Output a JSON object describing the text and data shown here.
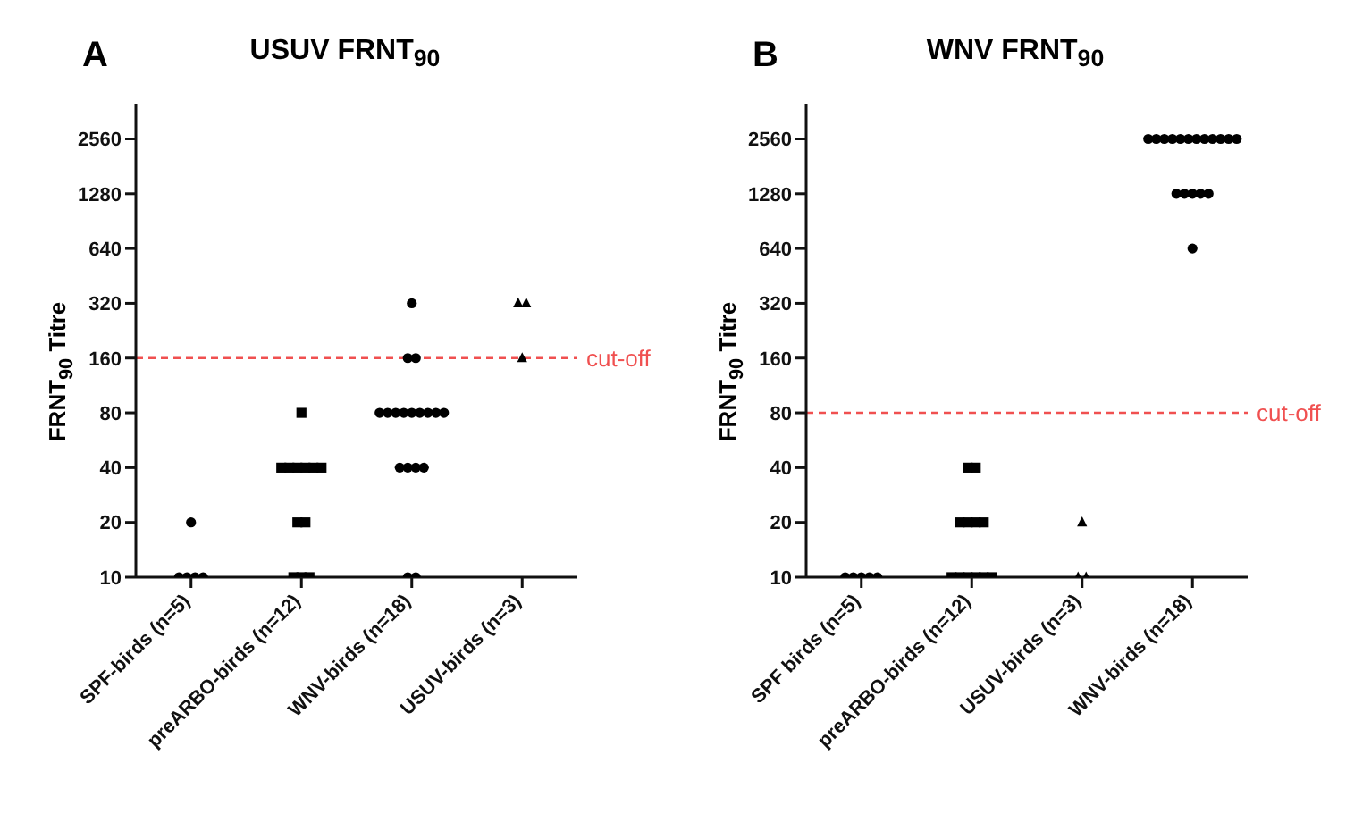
{
  "chart_data": [
    {
      "type": "scatter",
      "title": "USUV FRNT$_{90}$",
      "ylabel": "FRNT$_{90}$ Titre",
      "annotations": [
        "A"
      ],
      "categories": [
        "SPF-birds (n=5)",
        "preARBO-birds (n=12)",
        "WNV-birds (n=18)",
        "USUV-birds (n=3)"
      ],
      "log": "y",
      "ylim": [
        10,
        4000
      ],
      "yticks": [
        10,
        20,
        40,
        80,
        160,
        320,
        640,
        1280,
        2560
      ],
      "grid": false,
      "legend": false,
      "ref_lines": [
        {
          "axis": "y",
          "value": 160,
          "label": "cut-off",
          "color": "#f05050",
          "line_style": "dashed"
        }
      ],
      "series": [
        {
          "color": "#000000",
          "marker": "circle",
          "x": [
            "SPF-birds (n=5)",
            "SPF-birds (n=5)",
            "SPF-birds (n=5)",
            "SPF-birds (n=5)",
            "SPF-birds (n=5)"
          ],
          "values": [
            10,
            10,
            10,
            10,
            20
          ]
        },
        {
          "color": "#000000",
          "marker": "square",
          "x": [
            "preARBO-birds (n=12)",
            "preARBO-birds (n=12)",
            "preARBO-birds (n=12)",
            "preARBO-birds (n=12)",
            "preARBO-birds (n=12)",
            "preARBO-birds (n=12)",
            "preARBO-birds (n=12)",
            "preARBO-birds (n=12)",
            "preARBO-birds (n=12)",
            "preARBO-birds (n=12)",
            "preARBO-birds (n=12)",
            "preARBO-birds (n=12)"
          ],
          "values": [
            80,
            40,
            40,
            40,
            40,
            40,
            40,
            20,
            20,
            10,
            10,
            10
          ]
        },
        {
          "color": "#000000",
          "marker": "circle",
          "x": [
            "WNV-birds (n=18)",
            "WNV-birds (n=18)",
            "WNV-birds (n=18)",
            "WNV-birds (n=18)",
            "WNV-birds (n=18)",
            "WNV-birds (n=18)",
            "WNV-birds (n=18)",
            "WNV-birds (n=18)",
            "WNV-birds (n=18)",
            "WNV-birds (n=18)",
            "WNV-birds (n=18)",
            "WNV-birds (n=18)",
            "WNV-birds (n=18)",
            "WNV-birds (n=18)",
            "WNV-birds (n=18)",
            "WNV-birds (n=18)",
            "WNV-birds (n=18)",
            "WNV-birds (n=18)"
          ],
          "values": [
            320,
            160,
            160,
            80,
            80,
            80,
            80,
            80,
            80,
            80,
            80,
            80,
            40,
            40,
            40,
            40,
            10,
            10
          ]
        },
        {
          "color": "#000000",
          "marker": "triangle",
          "x": [
            "USUV-birds (n=3)",
            "USUV-birds (n=3)",
            "USUV-birds (n=3)"
          ],
          "values": [
            320,
            320,
            160
          ]
        }
      ]
    },
    {
      "type": "scatter",
      "title": "WNV FRNT$_{90}$",
      "ylabel": "FRNT$_{90}$ Titre",
      "annotations": [
        "B"
      ],
      "categories": [
        "SPF birds (n=5)",
        "preARBO-birds (n=12)",
        "USUV-birds (n=3)",
        "WNV-birds (n=18)"
      ],
      "log": "y",
      "ylim": [
        10,
        4000
      ],
      "yticks": [
        10,
        20,
        40,
        80,
        160,
        320,
        640,
        1280,
        2560
      ],
      "grid": false,
      "legend": false,
      "ref_lines": [
        {
          "axis": "y",
          "value": 80,
          "label": "cut-off",
          "color": "#f05050",
          "line_style": "dashed"
        }
      ],
      "series": [
        {
          "color": "#000000",
          "marker": "circle",
          "x": [
            "SPF birds (n=5)",
            "SPF birds (n=5)",
            "SPF birds (n=5)",
            "SPF birds (n=5)",
            "SPF birds (n=5)"
          ],
          "values": [
            10,
            10,
            10,
            10,
            10
          ]
        },
        {
          "color": "#000000",
          "marker": "square",
          "x": [
            "preARBO-birds (n=12)",
            "preARBO-birds (n=12)",
            "preARBO-birds (n=12)",
            "preARBO-birds (n=12)",
            "preARBO-birds (n=12)",
            "preARBO-birds (n=12)",
            "preARBO-birds (n=12)",
            "preARBO-birds (n=12)",
            "preARBO-birds (n=12)",
            "preARBO-birds (n=12)",
            "preARBO-birds (n=12)",
            "preARBO-birds (n=12)"
          ],
          "values": [
            40,
            40,
            20,
            20,
            20,
            20,
            10,
            10,
            10,
            10,
            10,
            10
          ]
        },
        {
          "color": "#000000",
          "marker": "triangle",
          "x": [
            "USUV-birds (n=3)",
            "USUV-birds (n=3)",
            "USUV-birds (n=3)"
          ],
          "values": [
            20,
            10,
            10
          ]
        },
        {
          "color": "#000000",
          "marker": "circle",
          "x": [
            "WNV-birds (n=18)",
            "WNV-birds (n=18)",
            "WNV-birds (n=18)",
            "WNV-birds (n=18)",
            "WNV-birds (n=18)",
            "WNV-birds (n=18)",
            "WNV-birds (n=18)",
            "WNV-birds (n=18)",
            "WNV-birds (n=18)",
            "WNV-birds (n=18)",
            "WNV-birds (n=18)",
            "WNV-birds (n=18)",
            "WNV-birds (n=18)",
            "WNV-birds (n=18)",
            "WNV-birds (n=18)",
            "WNV-birds (n=18)",
            "WNV-birds (n=18)",
            "WNV-birds (n=18)"
          ],
          "values": [
            2560,
            2560,
            2560,
            2560,
            2560,
            2560,
            2560,
            2560,
            2560,
            2560,
            2560,
            2560,
            1280,
            1280,
            1280,
            1280,
            1280,
            640
          ]
        }
      ]
    }
  ]
}
